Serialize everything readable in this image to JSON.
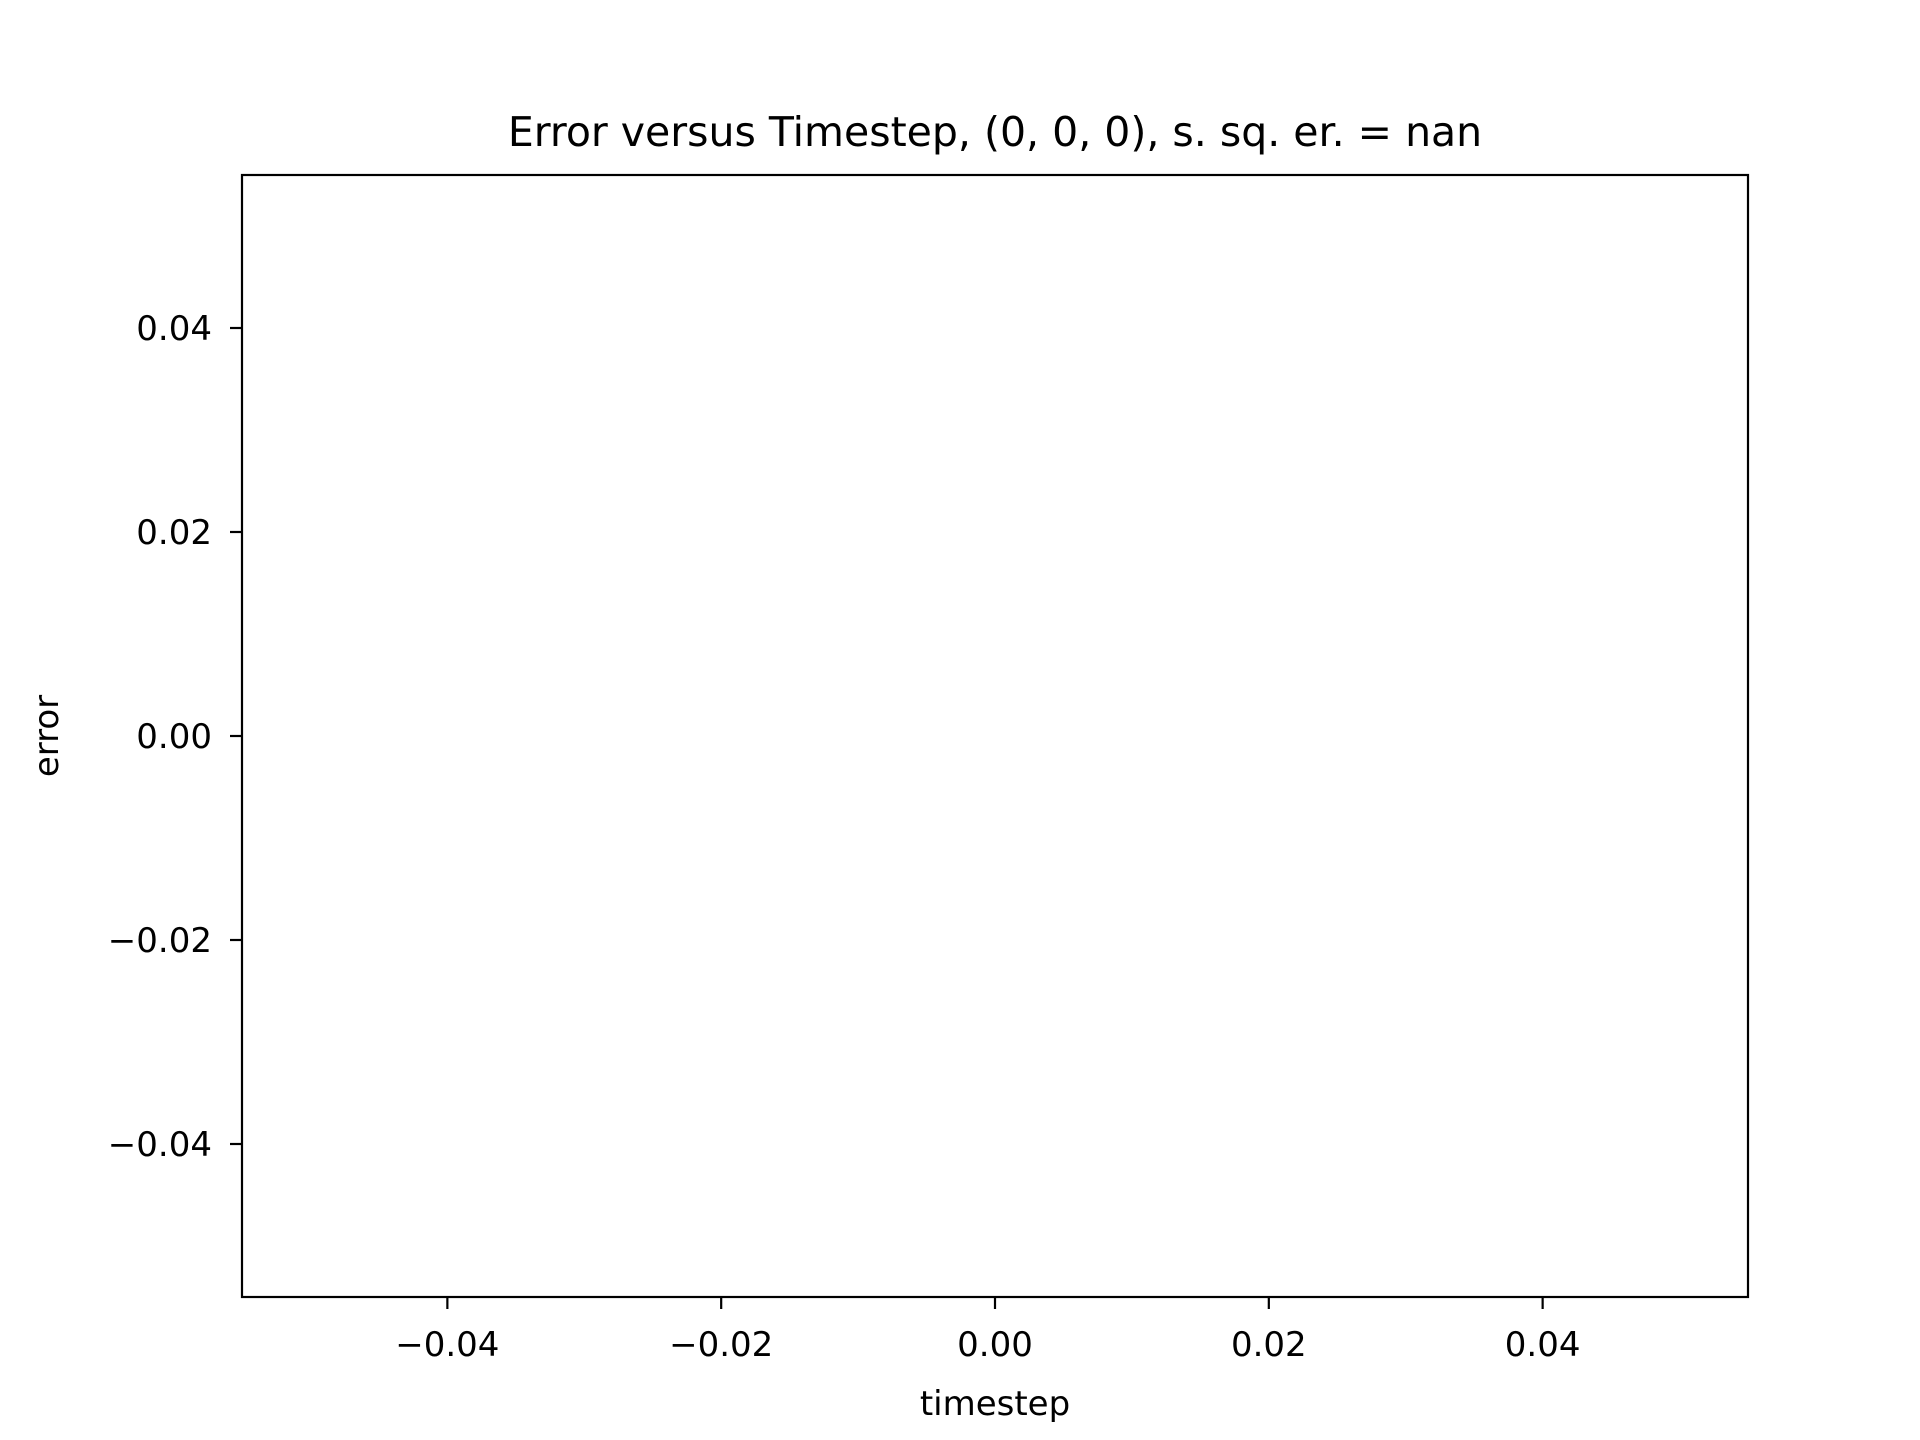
{
  "chart_data": {
    "type": "line",
    "title": "Error versus Timestep, (0, 0, 0), s. sq. er. = nan",
    "xlabel": "timestep",
    "ylabel": "error",
    "xlim": [
      -0.055,
      0.055
    ],
    "ylim": [
      -0.055,
      0.055
    ],
    "xticks": [
      -0.04,
      -0.02,
      0.0,
      0.02,
      0.04
    ],
    "xtick_labels": [
      "−0.04",
      "−0.02",
      "0.00",
      "0.02",
      "0.04"
    ],
    "yticks": [
      -0.04,
      -0.02,
      0.0,
      0.02,
      0.04
    ],
    "ytick_labels": [
      "−0.04",
      "−0.02",
      "0.00",
      "0.02",
      "0.04"
    ],
    "grid": false,
    "legend": "none",
    "series": [],
    "colors": {
      "axes": "#000000",
      "background": "#ffffff"
    }
  }
}
